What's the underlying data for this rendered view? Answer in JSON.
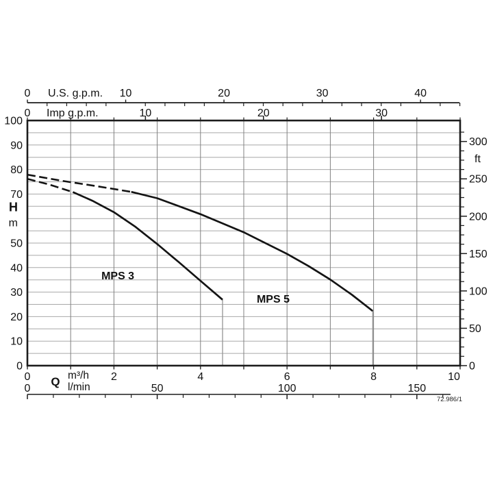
{
  "footnote": "72.986/1",
  "chart_data": {
    "type": "line",
    "title": "",
    "description": "Pump performance curves, head H (m / ft) versus flow Q (m3/h, l/min, U.S. g.p.m., Imp g.p.m.)",
    "colors": {
      "curve": "#141414",
      "border": "#1c1c1c",
      "grid_h": "#a8a8a8",
      "grid_v": "#808080",
      "drop_line": "#949494",
      "text": "#111111"
    },
    "axes": {
      "left": {
        "title": "H",
        "unit": "m",
        "min": 0,
        "max": 100,
        "labeled_ticks": [
          100,
          90,
          80,
          70,
          50,
          40,
          30,
          20,
          10,
          0
        ],
        "title_replaces_value": 60,
        "grid_step": 5
      },
      "right": {
        "unit": "ft",
        "labeled_ticks": [
          0,
          50,
          100,
          150,
          200,
          250,
          300
        ],
        "minor_step": 12.5,
        "minor_max": 320,
        "m_per_ft": 0.3048
      },
      "bottom_primary": {
        "title": "Q",
        "unit": "m³/h",
        "min": 0,
        "max": 10,
        "labeled_ticks": [
          0,
          2,
          4,
          6,
          8,
          10
        ],
        "tick_step": 1,
        "grid_step": 1
      },
      "bottom_secondary": {
        "unit": "l/min",
        "labeled_ticks": [
          0,
          50,
          100,
          150
        ],
        "minor_step": 10,
        "minor_max": 160,
        "units_per_m3h": 16.6667
      },
      "top_us": {
        "title": "U.S. g.p.m.",
        "labeled_ticks": [
          0,
          10,
          20,
          30,
          40
        ],
        "minor_step": 2,
        "minor_max": 44,
        "units_per_m3h": 4.4029
      },
      "top_imp": {
        "title": "Imp g.p.m.",
        "labeled_ticks": [
          0,
          10,
          20,
          30
        ],
        "border_tick_step_m3h": 1,
        "units_per_m3h": 3.6662
      }
    },
    "series": [
      {
        "name": "MPS 3",
        "label": {
          "text": "MPS 3",
          "q": 1.71,
          "h": 35.2
        },
        "dashed": [
          [
            0,
            76.2
          ],
          [
            0.5,
            73.9
          ],
          [
            0.8,
            72.2
          ],
          [
            1.05,
            70.8
          ]
        ],
        "solid": [
          [
            1.05,
            70.8
          ],
          [
            1.5,
            67.3
          ],
          [
            2.0,
            62.6
          ],
          [
            2.5,
            56.6
          ],
          [
            3.0,
            49.6
          ],
          [
            3.5,
            42.2
          ],
          [
            4.0,
            34.6
          ],
          [
            4.51,
            26.9
          ]
        ],
        "drop": {
          "q": 4.51,
          "from_h": 26.9,
          "to_h": 0
        }
      },
      {
        "name": "MPS 5",
        "label": {
          "text": "MPS 5",
          "q": 5.3,
          "h": 25.7
        },
        "dashed": [
          [
            0,
            77.9
          ],
          [
            0.8,
            75.4
          ],
          [
            1.6,
            73.2
          ],
          [
            2.4,
            70.9
          ]
        ],
        "solid": [
          [
            2.4,
            70.9
          ],
          [
            3.0,
            68.3
          ],
          [
            4.0,
            61.8
          ],
          [
            5.0,
            54.4
          ],
          [
            6.0,
            45.6
          ],
          [
            6.5,
            40.6
          ],
          [
            7.0,
            35.1
          ],
          [
            7.5,
            28.9
          ],
          [
            7.98,
            22.3
          ]
        ],
        "drop": {
          "q": 7.98,
          "from_h": 22.3,
          "to_h": 0
        }
      }
    ]
  }
}
